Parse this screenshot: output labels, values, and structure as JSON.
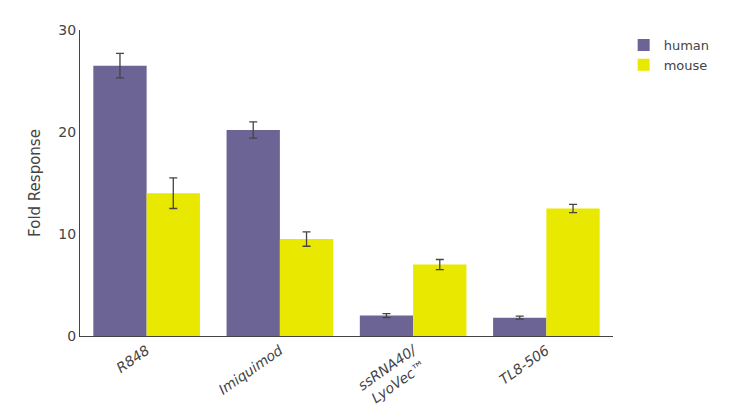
{
  "chart_data": {
    "type": "bar",
    "categories": [
      "R848",
      "Imiquimod",
      "ssRNA40/\nLyoVec™",
      "TL8-506"
    ],
    "series": [
      {
        "name": "human",
        "color": "#6b6494",
        "values": [
          26.5,
          20.2,
          2.0,
          1.8
        ],
        "errors": [
          1.2,
          0.8,
          0.2,
          0.15
        ]
      },
      {
        "name": "mouse",
        "color": "#e8e800",
        "values": [
          14.0,
          9.5,
          7.0,
          12.5
        ],
        "errors": [
          1.5,
          0.7,
          0.5,
          0.4
        ]
      }
    ],
    "ylabel": "Fold Response",
    "ylim": [
      0,
      30
    ],
    "yticks": [
      0,
      10,
      20,
      30
    ],
    "grid": false,
    "legend": "upper right"
  }
}
